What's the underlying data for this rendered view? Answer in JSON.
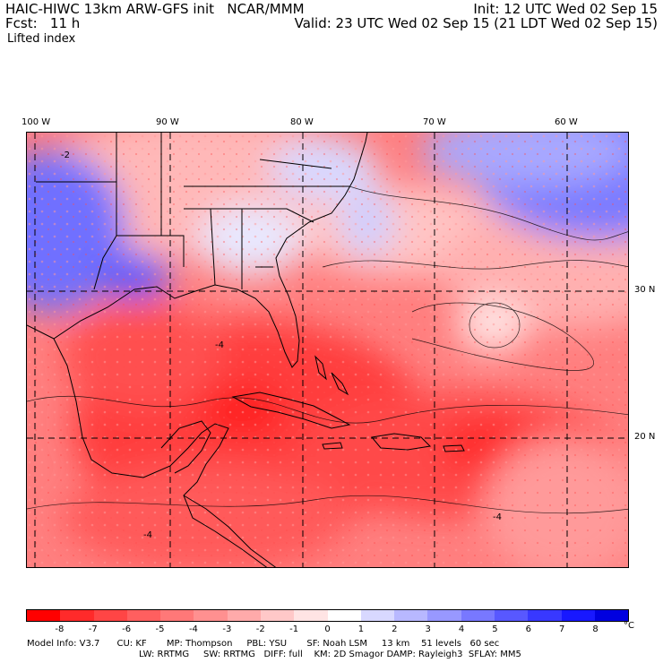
{
  "header": {
    "left_line1": "HAIC-HIWC 13km ARW-GFS init   NCAR/MMM",
    "left_line2": "Fcst:   11 h",
    "field": "Lifted index",
    "right_line1": "Init: 12 UTC Wed 02 Sep 15",
    "right_line2": "Valid: 23 UTC Wed 02 Sep 15 (21 LDT Wed 02 Sep 15)"
  },
  "map": {
    "lon_labels": [
      {
        "text": "100 W",
        "lon": -100
      },
      {
        "text": "90 W",
        "lon": -90
      },
      {
        "text": "80 W",
        "lon": -80
      },
      {
        "text": "70 W",
        "lon": -70
      },
      {
        "text": "60 W",
        "lon": -60
      }
    ],
    "lat_labels": [
      {
        "text": "30 N",
        "lat": 30
      },
      {
        "text": "20 N",
        "lat": 20
      }
    ]
  },
  "colorbar": {
    "unit": "°C",
    "labels": [
      "-8",
      "-7",
      "-6",
      "-5",
      "-4",
      "-3",
      "-2",
      "-1",
      "0",
      "1",
      "2",
      "3",
      "4",
      "5",
      "6",
      "7",
      "8"
    ],
    "colors": [
      "#ff0000",
      "#ff2a2a",
      "#ff4545",
      "#ff5f5f",
      "#ff7878",
      "#ff9090",
      "#ffaaaa",
      "#ffc8c8",
      "#ffe4e4",
      "#ffffff",
      "#d8d8ff",
      "#b8b8ff",
      "#9898ff",
      "#7878ff",
      "#5858ff",
      "#3838ff",
      "#1818ff",
      "#0000e0"
    ]
  },
  "footer": {
    "line1": "Model Info: V3.7      CU: KF       MP: Thompson     PBL: YSU       SF: Noah LSM     13 km    51 levels   60 sec",
    "line2": "LW: RRTMG     SW: RRTMG   DIFF: full    KM: 2D Smagor DAMP: Rayleigh3  SFLAY: MM5"
  }
}
